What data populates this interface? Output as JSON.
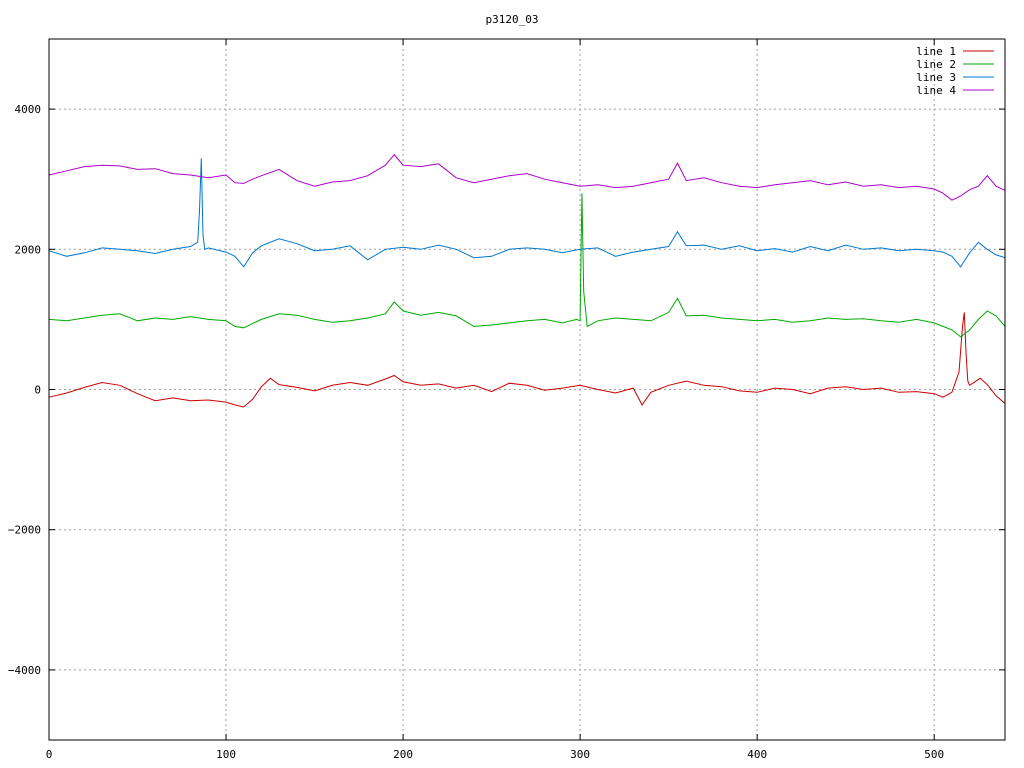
{
  "chart_data": {
    "type": "line",
    "title": "p3120_03",
    "xlabel": "",
    "ylabel": "",
    "xlim": [
      0,
      540
    ],
    "ylim": [
      -5000,
      5000
    ],
    "xticks": [
      0,
      100,
      200,
      300,
      400,
      500
    ],
    "yticks": [
      -4000,
      -2000,
      0,
      2000,
      4000
    ],
    "xtick_labels": [
      "0",
      "100",
      "200",
      "300",
      "400",
      "500"
    ],
    "ytick_labels": [
      "−4000",
      "−2000",
      "0",
      "2000",
      "4000"
    ],
    "grid": true,
    "legend_position": "top-right",
    "series": [
      {
        "name": "line 1",
        "color": "#cc0000",
        "x": [
          0,
          10,
          20,
          30,
          40,
          50,
          60,
          70,
          80,
          90,
          100,
          105,
          110,
          115,
          120,
          125,
          130,
          140,
          150,
          160,
          170,
          180,
          190,
          195,
          200,
          210,
          220,
          230,
          240,
          250,
          260,
          270,
          280,
          290,
          300,
          310,
          320,
          330,
          335,
          340,
          350,
          360,
          370,
          380,
          390,
          400,
          410,
          420,
          430,
          440,
          450,
          460,
          470,
          480,
          490,
          500,
          505,
          510,
          514,
          516,
          517,
          518,
          519,
          520,
          523,
          526,
          530,
          535,
          540
        ],
        "y": [
          -110,
          -50,
          30,
          100,
          60,
          -60,
          -160,
          -120,
          -160,
          -150,
          -180,
          -220,
          -250,
          -140,
          40,
          160,
          70,
          30,
          -20,
          60,
          100,
          60,
          150,
          200,
          110,
          60,
          80,
          20,
          60,
          -30,
          90,
          60,
          -10,
          20,
          60,
          0,
          -50,
          20,
          -220,
          -40,
          60,
          120,
          60,
          40,
          -20,
          -40,
          20,
          0,
          -60,
          20,
          40,
          0,
          20,
          -40,
          -30,
          -60,
          -110,
          -40,
          250,
          900,
          1100,
          500,
          120,
          60,
          110,
          160,
          70,
          -90,
          -200
        ]
      },
      {
        "name": "line 2",
        "color": "#00aa00",
        "x": [
          0,
          10,
          20,
          30,
          40,
          50,
          60,
          70,
          80,
          90,
          100,
          105,
          110,
          115,
          120,
          130,
          140,
          150,
          160,
          170,
          180,
          190,
          195,
          200,
          210,
          220,
          230,
          240,
          250,
          260,
          270,
          280,
          290,
          298,
          300,
          301,
          302,
          304,
          310,
          320,
          330,
          340,
          350,
          355,
          360,
          370,
          380,
          390,
          400,
          410,
          420,
          430,
          440,
          450,
          460,
          470,
          480,
          490,
          500,
          505,
          510,
          515,
          520,
          525,
          530,
          535,
          540
        ],
        "y": [
          1000,
          980,
          1020,
          1060,
          1080,
          980,
          1020,
          1000,
          1040,
          1000,
          980,
          900,
          880,
          940,
          1000,
          1080,
          1060,
          1000,
          960,
          980,
          1020,
          1080,
          1250,
          1120,
          1060,
          1100,
          1050,
          900,
          920,
          950,
          980,
          1000,
          950,
          1000,
          980,
          2800,
          1400,
          900,
          980,
          1020,
          1000,
          980,
          1100,
          1300,
          1050,
          1060,
          1020,
          1000,
          980,
          1000,
          960,
          980,
          1020,
          1000,
          1010,
          980,
          960,
          1000,
          950,
          900,
          850,
          750,
          850,
          1000,
          1120,
          1050,
          900
        ]
      },
      {
        "name": "line 3",
        "color": "#0077cc",
        "x": [
          0,
          10,
          20,
          30,
          40,
          50,
          60,
          70,
          80,
          84,
          85,
          86,
          87,
          88,
          90,
          100,
          105,
          110,
          115,
          120,
          130,
          140,
          150,
          160,
          170,
          180,
          190,
          200,
          210,
          220,
          230,
          240,
          250,
          260,
          270,
          280,
          290,
          300,
          310,
          320,
          330,
          340,
          350,
          355,
          360,
          370,
          380,
          390,
          400,
          410,
          420,
          430,
          440,
          450,
          460,
          470,
          480,
          490,
          500,
          505,
          510,
          515,
          520,
          525,
          530,
          535,
          540
        ],
        "y": [
          1980,
          1900,
          1950,
          2020,
          2000,
          1980,
          1940,
          2000,
          2040,
          2100,
          2550,
          3300,
          2200,
          2000,
          2020,
          1960,
          1900,
          1750,
          1950,
          2050,
          2150,
          2080,
          1980,
          2000,
          2050,
          1850,
          2000,
          2030,
          2000,
          2060,
          2000,
          1880,
          1900,
          2000,
          2020,
          2000,
          1950,
          2000,
          2020,
          1900,
          1960,
          2000,
          2040,
          2250,
          2050,
          2060,
          2000,
          2050,
          1980,
          2010,
          1960,
          2040,
          1980,
          2060,
          2000,
          2020,
          1980,
          2000,
          1980,
          1960,
          1900,
          1750,
          1950,
          2100,
          2000,
          1920,
          1880
        ]
      },
      {
        "name": "line 4",
        "color": "#aa00cc",
        "x": [
          0,
          10,
          20,
          30,
          40,
          50,
          60,
          70,
          80,
          90,
          100,
          105,
          110,
          115,
          120,
          130,
          140,
          150,
          160,
          170,
          180,
          190,
          195,
          200,
          210,
          220,
          230,
          240,
          250,
          260,
          270,
          280,
          290,
          300,
          310,
          320,
          330,
          340,
          350,
          355,
          360,
          370,
          380,
          390,
          400,
          410,
          420,
          430,
          440,
          450,
          460,
          470,
          480,
          490,
          500,
          505,
          510,
          515,
          520,
          525,
          530,
          535,
          540
        ],
        "y": [
          3060,
          3120,
          3180,
          3200,
          3190,
          3140,
          3150,
          3080,
          3060,
          3020,
          3060,
          2950,
          2940,
          3000,
          3050,
          3140,
          2980,
          2900,
          2960,
          2980,
          3050,
          3200,
          3350,
          3200,
          3180,
          3220,
          3020,
          2950,
          3000,
          3050,
          3080,
          3000,
          2950,
          2900,
          2920,
          2880,
          2900,
          2950,
          3000,
          3230,
          2980,
          3020,
          2950,
          2900,
          2880,
          2920,
          2950,
          2980,
          2920,
          2960,
          2900,
          2920,
          2880,
          2900,
          2860,
          2800,
          2700,
          2760,
          2850,
          2900,
          3050,
          2900,
          2840
        ]
      }
    ]
  }
}
